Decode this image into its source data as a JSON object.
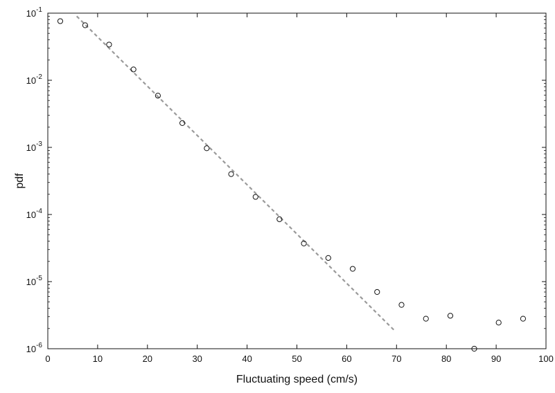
{
  "chart_data": {
    "type": "scatter",
    "title": "",
    "xlabel": "Fluctuating speed (cm/s)",
    "ylabel": "pdf",
    "xlim": [
      0,
      100
    ],
    "ylim": [
      1e-06,
      0.1
    ],
    "yscale": "log",
    "grid": false,
    "x_ticks": [
      0,
      10,
      20,
      30,
      40,
      50,
      60,
      70,
      80,
      90,
      100
    ],
    "y_ticks": [
      {
        "value": 1e-06,
        "base": "10",
        "exp": "-6"
      },
      {
        "value": 1e-05,
        "base": "10",
        "exp": "-5"
      },
      {
        "value": 0.0001,
        "base": "10",
        "exp": "-4"
      },
      {
        "value": 0.001,
        "base": "10",
        "exp": "-3"
      },
      {
        "value": 0.01,
        "base": "10",
        "exp": "-2"
      },
      {
        "value": 0.1,
        "base": "10",
        "exp": "-1"
      }
    ],
    "series": [
      {
        "marker": "open-circle",
        "color": "#111111",
        "x": [
          2.5,
          7.5,
          12.3,
          17.2,
          22.1,
          27.0,
          31.9,
          36.8,
          41.7,
          46.5,
          51.4,
          56.3,
          61.2,
          66.1,
          71.0,
          75.9,
          80.8,
          85.6,
          90.5,
          95.4
        ],
        "y": [
          0.076,
          0.066,
          0.034,
          0.0145,
          0.0059,
          0.0023,
          0.00097,
          0.0004,
          0.000183,
          8.5e-05,
          3.7e-05,
          2.25e-05,
          1.55e-05,
          7e-06,
          4.5e-06,
          2.8e-06,
          3.1e-06,
          1e-06,
          2.45e-06,
          2.8e-06
        ]
      },
      {
        "type": "line",
        "style": "dashed",
        "color": "#9a9a9a",
        "x": [
          5.8,
          69.8
        ],
        "y": [
          0.09,
          1.8e-06
        ]
      }
    ]
  }
}
